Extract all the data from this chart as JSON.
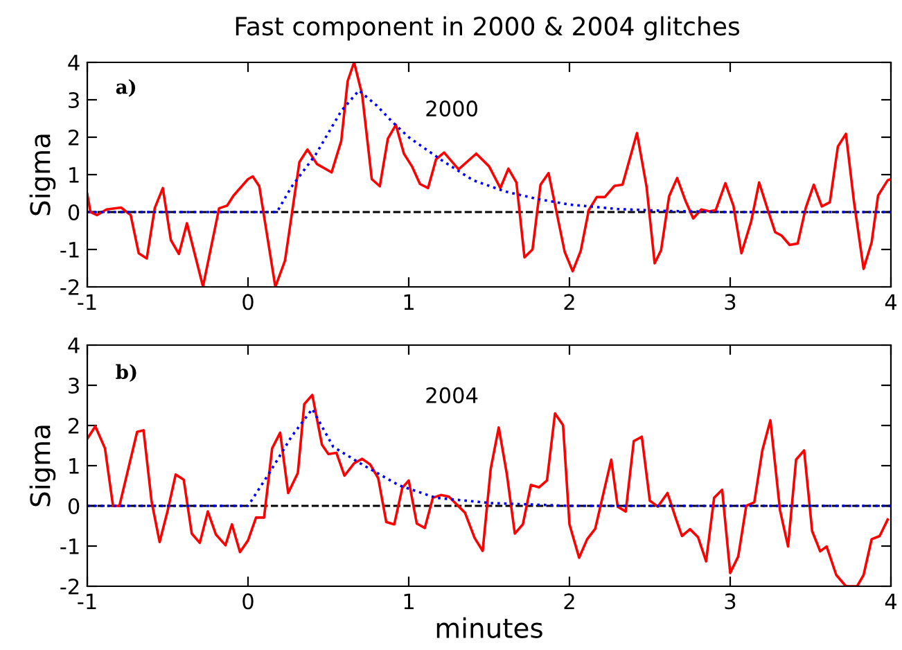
{
  "chart_data": [
    {
      "type": "line",
      "title": "Fast component in 2000 & 2004 glitches",
      "ylabel": "Sigma",
      "annotations": [
        "a)",
        "2000"
      ],
      "xlim": [
        -1,
        4
      ],
      "ylim": [
        -2,
        4
      ],
      "xticks": [
        -1,
        0,
        1,
        2,
        3,
        4
      ],
      "yticks": [
        -2,
        -1,
        0,
        1,
        2,
        3,
        4
      ],
      "grid": false,
      "ref_lines": [
        {
          "axis": "y",
          "value": 0,
          "color": "#000000",
          "line_style": "dashed"
        }
      ],
      "series": [
        {
          "color": "#ff0000",
          "line_style": "solid",
          "x": [
            -1.0,
            -0.98,
            -0.94,
            -0.88,
            -0.79,
            -0.73,
            -0.68,
            -0.63,
            -0.58,
            -0.53,
            -0.48,
            -0.43,
            -0.38,
            -0.28,
            -0.18,
            -0.13,
            -0.09,
            0.0,
            0.03,
            0.07,
            0.17,
            0.23,
            0.32,
            0.37,
            0.43,
            0.52,
            0.58,
            0.62,
            0.66,
            0.71,
            0.77,
            0.82,
            0.87,
            0.92,
            0.97,
            1.02,
            1.07,
            1.12,
            1.17,
            1.22,
            1.31,
            1.42,
            1.5,
            1.57,
            1.62,
            1.67,
            1.72,
            1.77,
            1.82,
            1.87,
            1.97,
            2.02,
            2.07,
            2.12,
            2.17,
            2.22,
            2.28,
            2.33,
            2.42,
            2.48,
            2.53,
            2.57,
            2.62,
            2.67,
            2.72,
            2.77,
            2.82,
            2.87,
            2.91,
            2.97,
            3.02,
            3.07,
            3.13,
            3.18,
            3.23,
            3.28,
            3.32,
            3.37,
            3.42,
            3.47,
            3.52,
            3.57,
            3.62,
            3.67,
            3.72,
            3.77,
            3.83,
            3.88,
            3.92,
            3.98,
            4.0
          ],
          "values": [
            0.48,
            0.0,
            -0.08,
            0.07,
            0.12,
            -0.08,
            -1.1,
            -1.24,
            0.11,
            0.64,
            -0.75,
            -1.12,
            -0.3,
            -1.99,
            0.1,
            0.17,
            0.44,
            0.88,
            0.95,
            0.69,
            -2.0,
            -1.3,
            1.34,
            1.67,
            1.28,
            1.06,
            1.9,
            3.5,
            4.0,
            3.14,
            0.88,
            0.69,
            1.96,
            2.33,
            1.56,
            1.22,
            0.75,
            0.64,
            1.41,
            1.59,
            1.14,
            1.56,
            1.22,
            0.64,
            1.16,
            0.79,
            -1.21,
            -1.0,
            0.73,
            1.04,
            -1.06,
            -1.58,
            -1.04,
            0.05,
            0.4,
            0.4,
            0.7,
            0.73,
            2.11,
            0.67,
            -1.37,
            -1.02,
            0.42,
            0.91,
            0.32,
            -0.17,
            0.07,
            0.02,
            0.05,
            0.77,
            0.17,
            -1.1,
            -0.26,
            0.79,
            0.11,
            -0.54,
            -0.63,
            -0.88,
            -0.84,
            0.11,
            0.73,
            0.15,
            0.26,
            1.75,
            2.09,
            0.28,
            -1.52,
            -0.81,
            0.44,
            0.85,
            0.88
          ]
        },
        {
          "color": "#0000ff",
          "line_style": "dotted",
          "x": [
            -1.0,
            0.18,
            0.27,
            0.42,
            0.58,
            0.69,
            0.8,
            0.9,
            1.0,
            1.2,
            1.4,
            1.6,
            1.8,
            2.0,
            2.3,
            2.6,
            3.0,
            4.0
          ],
          "values": [
            0,
            0,
            0.67,
            1.53,
            2.7,
            3.25,
            2.85,
            2.4,
            2.0,
            1.4,
            0.85,
            0.55,
            0.35,
            0.2,
            0.08,
            0.03,
            0,
            0
          ]
        }
      ]
    },
    {
      "type": "line",
      "xlabel": "minutes",
      "ylabel": "Sigma",
      "annotations": [
        "b)",
        "2004"
      ],
      "xlim": [
        -1,
        4
      ],
      "ylim": [
        -2,
        4
      ],
      "xticks": [
        -1,
        0,
        1,
        2,
        3,
        4
      ],
      "yticks": [
        -2,
        -1,
        0,
        1,
        2,
        3,
        4
      ],
      "grid": false,
      "ref_lines": [
        {
          "axis": "y",
          "value": 0,
          "color": "#000000",
          "line_style": "dashed"
        }
      ],
      "series": [
        {
          "color": "#ff0000",
          "line_style": "solid",
          "x": [
            -1.0,
            -0.95,
            -0.89,
            -0.84,
            -0.8,
            -0.69,
            -0.65,
            -0.6,
            -0.55,
            -0.5,
            -0.45,
            -0.4,
            -0.35,
            -0.3,
            -0.25,
            -0.2,
            -0.14,
            -0.1,
            -0.05,
            0.0,
            0.05,
            0.1,
            0.15,
            0.2,
            0.25,
            0.31,
            0.35,
            0.4,
            0.46,
            0.5,
            0.55,
            0.6,
            0.66,
            0.71,
            0.76,
            0.81,
            0.86,
            0.91,
            0.96,
            1.0,
            1.05,
            1.1,
            1.15,
            1.2,
            1.25,
            1.35,
            1.41,
            1.46,
            1.51,
            1.56,
            1.61,
            1.66,
            1.71,
            1.76,
            1.81,
            1.86,
            1.91,
            1.96,
            2.0,
            2.06,
            2.11,
            2.16,
            2.26,
            2.3,
            2.35,
            2.4,
            2.45,
            2.5,
            2.55,
            2.61,
            2.66,
            2.7,
            2.75,
            2.8,
            2.85,
            2.9,
            2.95,
            3.0,
            3.05,
            3.1,
            3.15,
            3.2,
            3.25,
            3.31,
            3.36,
            3.41,
            3.46,
            3.51,
            3.56,
            3.6,
            3.66,
            3.72,
            3.79,
            3.83,
            3.88,
            3.93,
            3.98
          ],
          "values": [
            1.67,
            1.98,
            1.43,
            0.0,
            0.0,
            1.84,
            1.88,
            0.11,
            -0.9,
            -0.12,
            0.78,
            0.65,
            -0.69,
            -0.92,
            -0.14,
            -0.71,
            -0.98,
            -0.46,
            -1.15,
            -0.86,
            -0.29,
            -0.29,
            1.43,
            1.82,
            0.32,
            0.82,
            2.53,
            2.76,
            1.52,
            1.29,
            1.32,
            0.75,
            1.06,
            1.17,
            1.03,
            0.69,
            -0.4,
            -0.46,
            0.45,
            0.63,
            -0.44,
            -0.55,
            0.2,
            0.27,
            0.23,
            -0.17,
            -0.8,
            -1.12,
            0.92,
            1.95,
            0.8,
            -0.69,
            -0.46,
            0.52,
            0.46,
            0.63,
            2.3,
            2.01,
            -0.46,
            -1.29,
            -0.83,
            -0.57,
            1.15,
            -0.02,
            -0.14,
            1.61,
            1.72,
            0.13,
            -0.02,
            0.32,
            -0.29,
            -0.75,
            -0.58,
            -0.78,
            -1.38,
            0.2,
            0.4,
            -1.67,
            -1.26,
            0.0,
            0.09,
            1.38,
            2.13,
            -0.11,
            -1.01,
            1.15,
            1.38,
            -0.63,
            -1.13,
            -1.01,
            -1.72,
            -2.0,
            -2.0,
            -1.72,
            -0.83,
            -0.75,
            -0.34
          ]
        },
        {
          "color": "#0000ff",
          "line_style": "dotted",
          "x": [
            -1.0,
            0.0,
            0.13,
            0.27,
            0.4,
            0.53,
            0.71,
            0.94,
            1.17,
            1.51,
            2.0,
            4.0
          ],
          "values": [
            0,
            0,
            0.8,
            1.72,
            2.41,
            1.47,
            1.03,
            0.51,
            0.2,
            0.07,
            0,
            0
          ]
        }
      ]
    }
  ]
}
